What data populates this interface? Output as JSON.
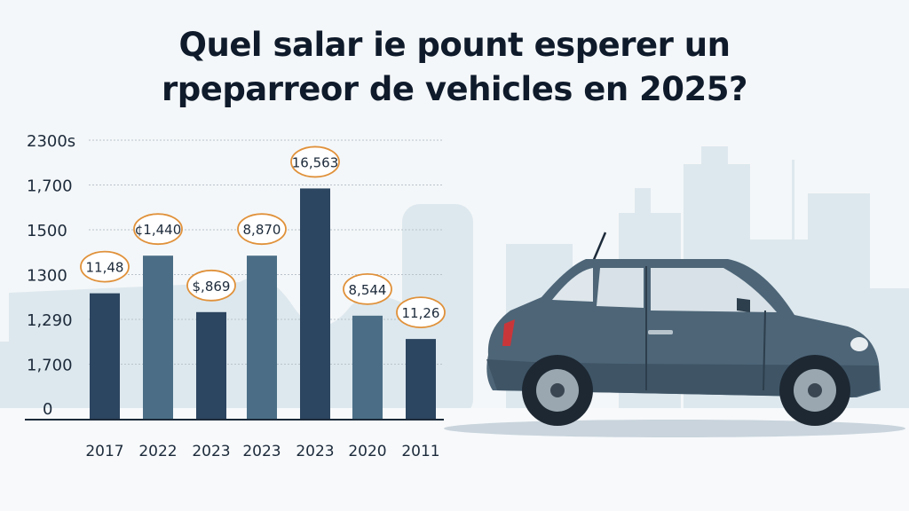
{
  "title_lines": [
    "Quel salar ie pount esperer un",
    "rpeparreor de vehicles en 2025?"
  ],
  "chart_data": {
    "type": "bar",
    "title": "Quel salar ie pount esperer un rpeparreor de vehicles en 2025?",
    "categories": [
      "2017",
      "2022",
      "2023",
      "2023",
      "2023",
      "2020",
      "2011"
    ],
    "y_tick_labels": [
      "0",
      "1,700",
      "1,290",
      "1300",
      "1500",
      "1,700",
      "2300s"
    ],
    "values": [
      2.8,
      3.64,
      2.38,
      3.64,
      5.14,
      2.3,
      1.78
    ],
    "value_units": "gridline steps (axis tick labels are non-monotonic)",
    "data_labels": [
      "11,48",
      "¢1,440",
      "$,869",
      "8,870",
      "16,563",
      "8,544",
      "11,26"
    ],
    "ylim": [
      0,
      6.2
    ],
    "grid": true,
    "legend": "none",
    "colors": {
      "dark": "#2c4560",
      "medium": "#4b6e86",
      "label_ring": "#e0913a"
    }
  }
}
